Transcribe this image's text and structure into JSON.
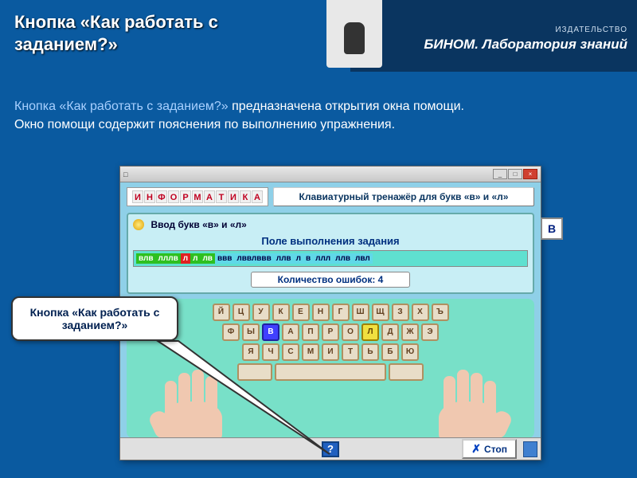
{
  "publisher": {
    "small": "ИЗДАТЕЛЬСТВО",
    "main": "БИНОМ. Лаборатория знаний"
  },
  "page_title": "Кнопка «Как работать с заданием?»",
  "description": {
    "hl": "Кнопка «Как работать с заданием?» ",
    "rest1": "предназначена открытия окна помощи.",
    "rest2": "Окно помощи содержит пояснения по выполнению упражнения."
  },
  "app": {
    "window_icon": "□",
    "word_letters": [
      "И",
      "Н",
      "Ф",
      "О",
      "Р",
      "М",
      "А",
      "Т",
      "И",
      "К",
      "А"
    ],
    "subtitle": "Клавиатурный тренажёр для букв «в» и «л»",
    "task_title": "Ввод букв «в» и «л»",
    "field_label": "Поле выполнения задания",
    "sequence": [
      {
        "t": "влв",
        "c": "g"
      },
      {
        "t": "лллв",
        "c": "g"
      },
      {
        "t": "л",
        "c": "r"
      },
      {
        "t": "л",
        "c": "g"
      },
      {
        "t": "лв",
        "c": "g"
      },
      {
        "t": "ввв",
        "c": "c"
      },
      {
        "t": "лввлввв",
        "c": "c"
      },
      {
        "t": "ллв",
        "c": "c"
      },
      {
        "t": "л",
        "c": "c"
      },
      {
        "t": "в",
        "c": "c"
      },
      {
        "t": "ллл",
        "c": "c"
      },
      {
        "t": "ллв",
        "c": "c"
      },
      {
        "t": "лвл",
        "c": "c"
      }
    ],
    "mistakes_label": "Количество ошибок: 4",
    "side_letter": "В",
    "kb": {
      "row1": [
        "Й",
        "Ц",
        "У",
        "К",
        "Е",
        "Н",
        "Г",
        "Ш",
        "Щ",
        "З",
        "Х",
        "Ъ"
      ],
      "row2": [
        "Ф",
        "Ы",
        "В",
        "А",
        "П",
        "Р",
        "О",
        "Л",
        "Д",
        "Ж",
        "Э"
      ],
      "row3": [
        "Я",
        "Ч",
        "С",
        "М",
        "И",
        "Т",
        "Ь",
        "Б",
        "Ю"
      ],
      "hl_blue": "В",
      "hl_yellow": "Л"
    },
    "help_btn": "?",
    "stop_label": "Стоп"
  },
  "callout": "Кнопка «Как работать с заданием?»"
}
